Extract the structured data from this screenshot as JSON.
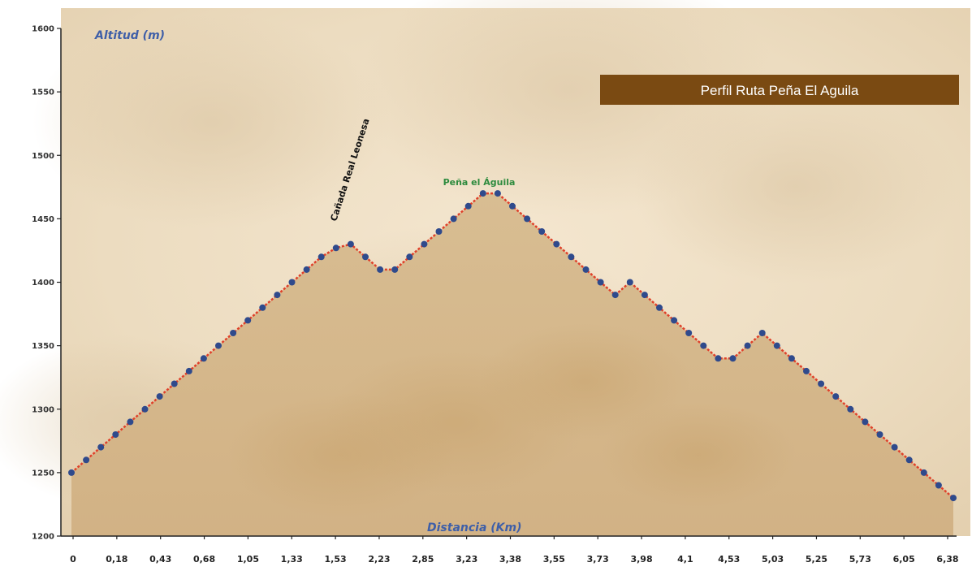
{
  "chart_data": {
    "type": "line",
    "title": "Perfil Ruta Peña El Aguila",
    "xlabel": "Distancia (Km)",
    "ylabel": "Altitud (m)",
    "ylim": [
      1200,
      1600
    ],
    "y_ticks": [
      1200,
      1250,
      1300,
      1350,
      1400,
      1450,
      1500,
      1550,
      1600
    ],
    "x_tick_labels": [
      "0",
      "0,18",
      "0,43",
      "0,68",
      "1,05",
      "1,33",
      "1,53",
      "2,23",
      "2,85",
      "3,23",
      "3,38",
      "3,55",
      "3,73",
      "3,98",
      "4,1",
      "4,53",
      "5,03",
      "5,25",
      "5,73",
      "6,05",
      "6,38"
    ],
    "grid": false,
    "colors": {
      "line": "#e0402a",
      "marker": "#2f4a8c",
      "title_bg": "#7a4a12",
      "axis_title": "#3f5fa8",
      "green_label": "#2e8b3e",
      "fill": "#d2b48a"
    },
    "series": [
      {
        "values": [
          1250,
          1260,
          1270,
          1280,
          1290,
          1300,
          1310,
          1320,
          1330,
          1340,
          1350,
          1360,
          1370,
          1380,
          1390,
          1400,
          1410,
          1420,
          1427,
          1430,
          1420,
          1410,
          1410,
          1420,
          1430,
          1440,
          1450,
          1460,
          1470,
          1470,
          1460,
          1450,
          1440,
          1430,
          1420,
          1410,
          1400,
          1390,
          1400,
          1390,
          1380,
          1370,
          1360,
          1350,
          1340,
          1340,
          1350,
          1360,
          1350,
          1340,
          1330,
          1320,
          1310,
          1300,
          1290,
          1280,
          1270,
          1260,
          1250,
          1240,
          1230
        ]
      }
    ],
    "annotations": [
      {
        "text": "Cañada Real Leonesa"
      },
      {
        "text": "Peña el Águila"
      }
    ]
  }
}
